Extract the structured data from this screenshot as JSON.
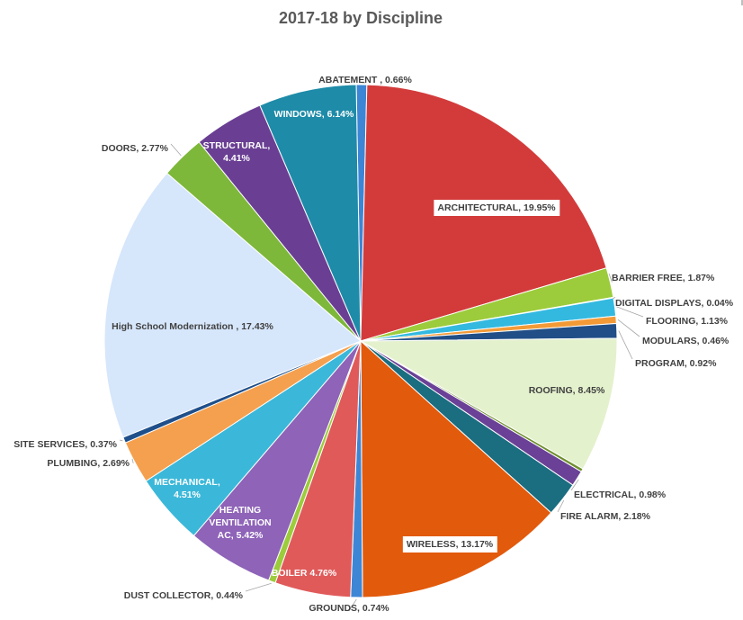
{
  "chart_data": {
    "type": "pie",
    "title": "2017-18 by Discipline",
    "slices": [
      {
        "label": "ABATEMENT",
        "value": 0.66,
        "display": "ABATEMENT , 0.66%",
        "color": "#3d86d6"
      },
      {
        "label": "ARCHITECTURAL",
        "value": 19.95,
        "display": "ARCHITECTURAL, 19.95%",
        "color": "#d33b3b"
      },
      {
        "label": "BARRIER FREE",
        "value": 1.87,
        "display": "BARRIER FREE, 1.87%",
        "color": "#9ccc3b"
      },
      {
        "label": "DIGITAL DISPLAYS",
        "value": 0.04,
        "display": "DIGITAL DISPLAYS, 0.04%",
        "color": "#6a4196"
      },
      {
        "label": "FLOORING",
        "value": 1.13,
        "display": "FLOORING, 1.13%",
        "color": "#33b9e0"
      },
      {
        "label": "MODULARS",
        "value": 0.46,
        "display": "MODULARS, 0.46%",
        "color": "#f39a37"
      },
      {
        "label": "PROGRAM",
        "value": 0.92,
        "display": "PROGRAM, 0.92%",
        "color": "#214e86"
      },
      {
        "label": "ROOFING",
        "value": 8.45,
        "display": "ROOFING, 8.45%",
        "color": "#e4f1cd"
      },
      {
        "label": "",
        "value": 0.2,
        "display": "",
        "color": "#6f8f2e"
      },
      {
        "label": "ELECTRICAL",
        "value": 0.98,
        "display": "ELECTRICAL, 0.98%",
        "color": "#6a4196"
      },
      {
        "label": "FIRE ALARM",
        "value": 2.18,
        "display": "FIRE ALARM, 2.18%",
        "color": "#1b6d80"
      },
      {
        "label": "WIRELESS",
        "value": 13.17,
        "display": "WIRELESS, 13.17%",
        "color": "#e25a0c"
      },
      {
        "label": "GROUNDS",
        "value": 0.74,
        "display": "GROUNDS, 0.74%",
        "color": "#3d86d6"
      },
      {
        "label": "BOILER",
        "value": 4.76,
        "display": "BOILER  4.76%",
        "color": "#e05a5a"
      },
      {
        "label": "DUST COLLECTOR",
        "value": 0.44,
        "display": "DUST COLLECTOR, 0.44%",
        "color": "#9ccc3b"
      },
      {
        "label": "HEATING VENTILATION AC",
        "value": 5.42,
        "display": "HEATING VENTILATION AC, 5.42%",
        "color": "#8e63b8"
      },
      {
        "label": "MECHANICAL",
        "value": 4.51,
        "display": "MECHANICAL, 4.51%",
        "color": "#3bb8d9"
      },
      {
        "label": "PLUMBING",
        "value": 2.69,
        "display": "PLUMBING, 2.69%",
        "color": "#f5a04e"
      },
      {
        "label": "SITE SERVICES",
        "value": 0.37,
        "display": "SITE SERVICES, 0.37%",
        "color": "#1f4f8a"
      },
      {
        "label": "High School Modernization",
        "value": 17.43,
        "display": "High School Modernization , 17.43%",
        "color": "#d6e6fb"
      },
      {
        "label": "DOORS",
        "value": 2.77,
        "display": "DOORS, 2.77%",
        "color": "#7db83a"
      },
      {
        "label": "STRUCTURAL",
        "value": 4.41,
        "display": "STRUCTURAL, 4.41%",
        "color": "#6a3f93"
      },
      {
        "label": "WINDOWS",
        "value": 6.14,
        "display": "WINDOWS, 6.14%",
        "color": "#1e8ba8"
      }
    ],
    "legend": "none",
    "data_labels": "category and percent"
  }
}
